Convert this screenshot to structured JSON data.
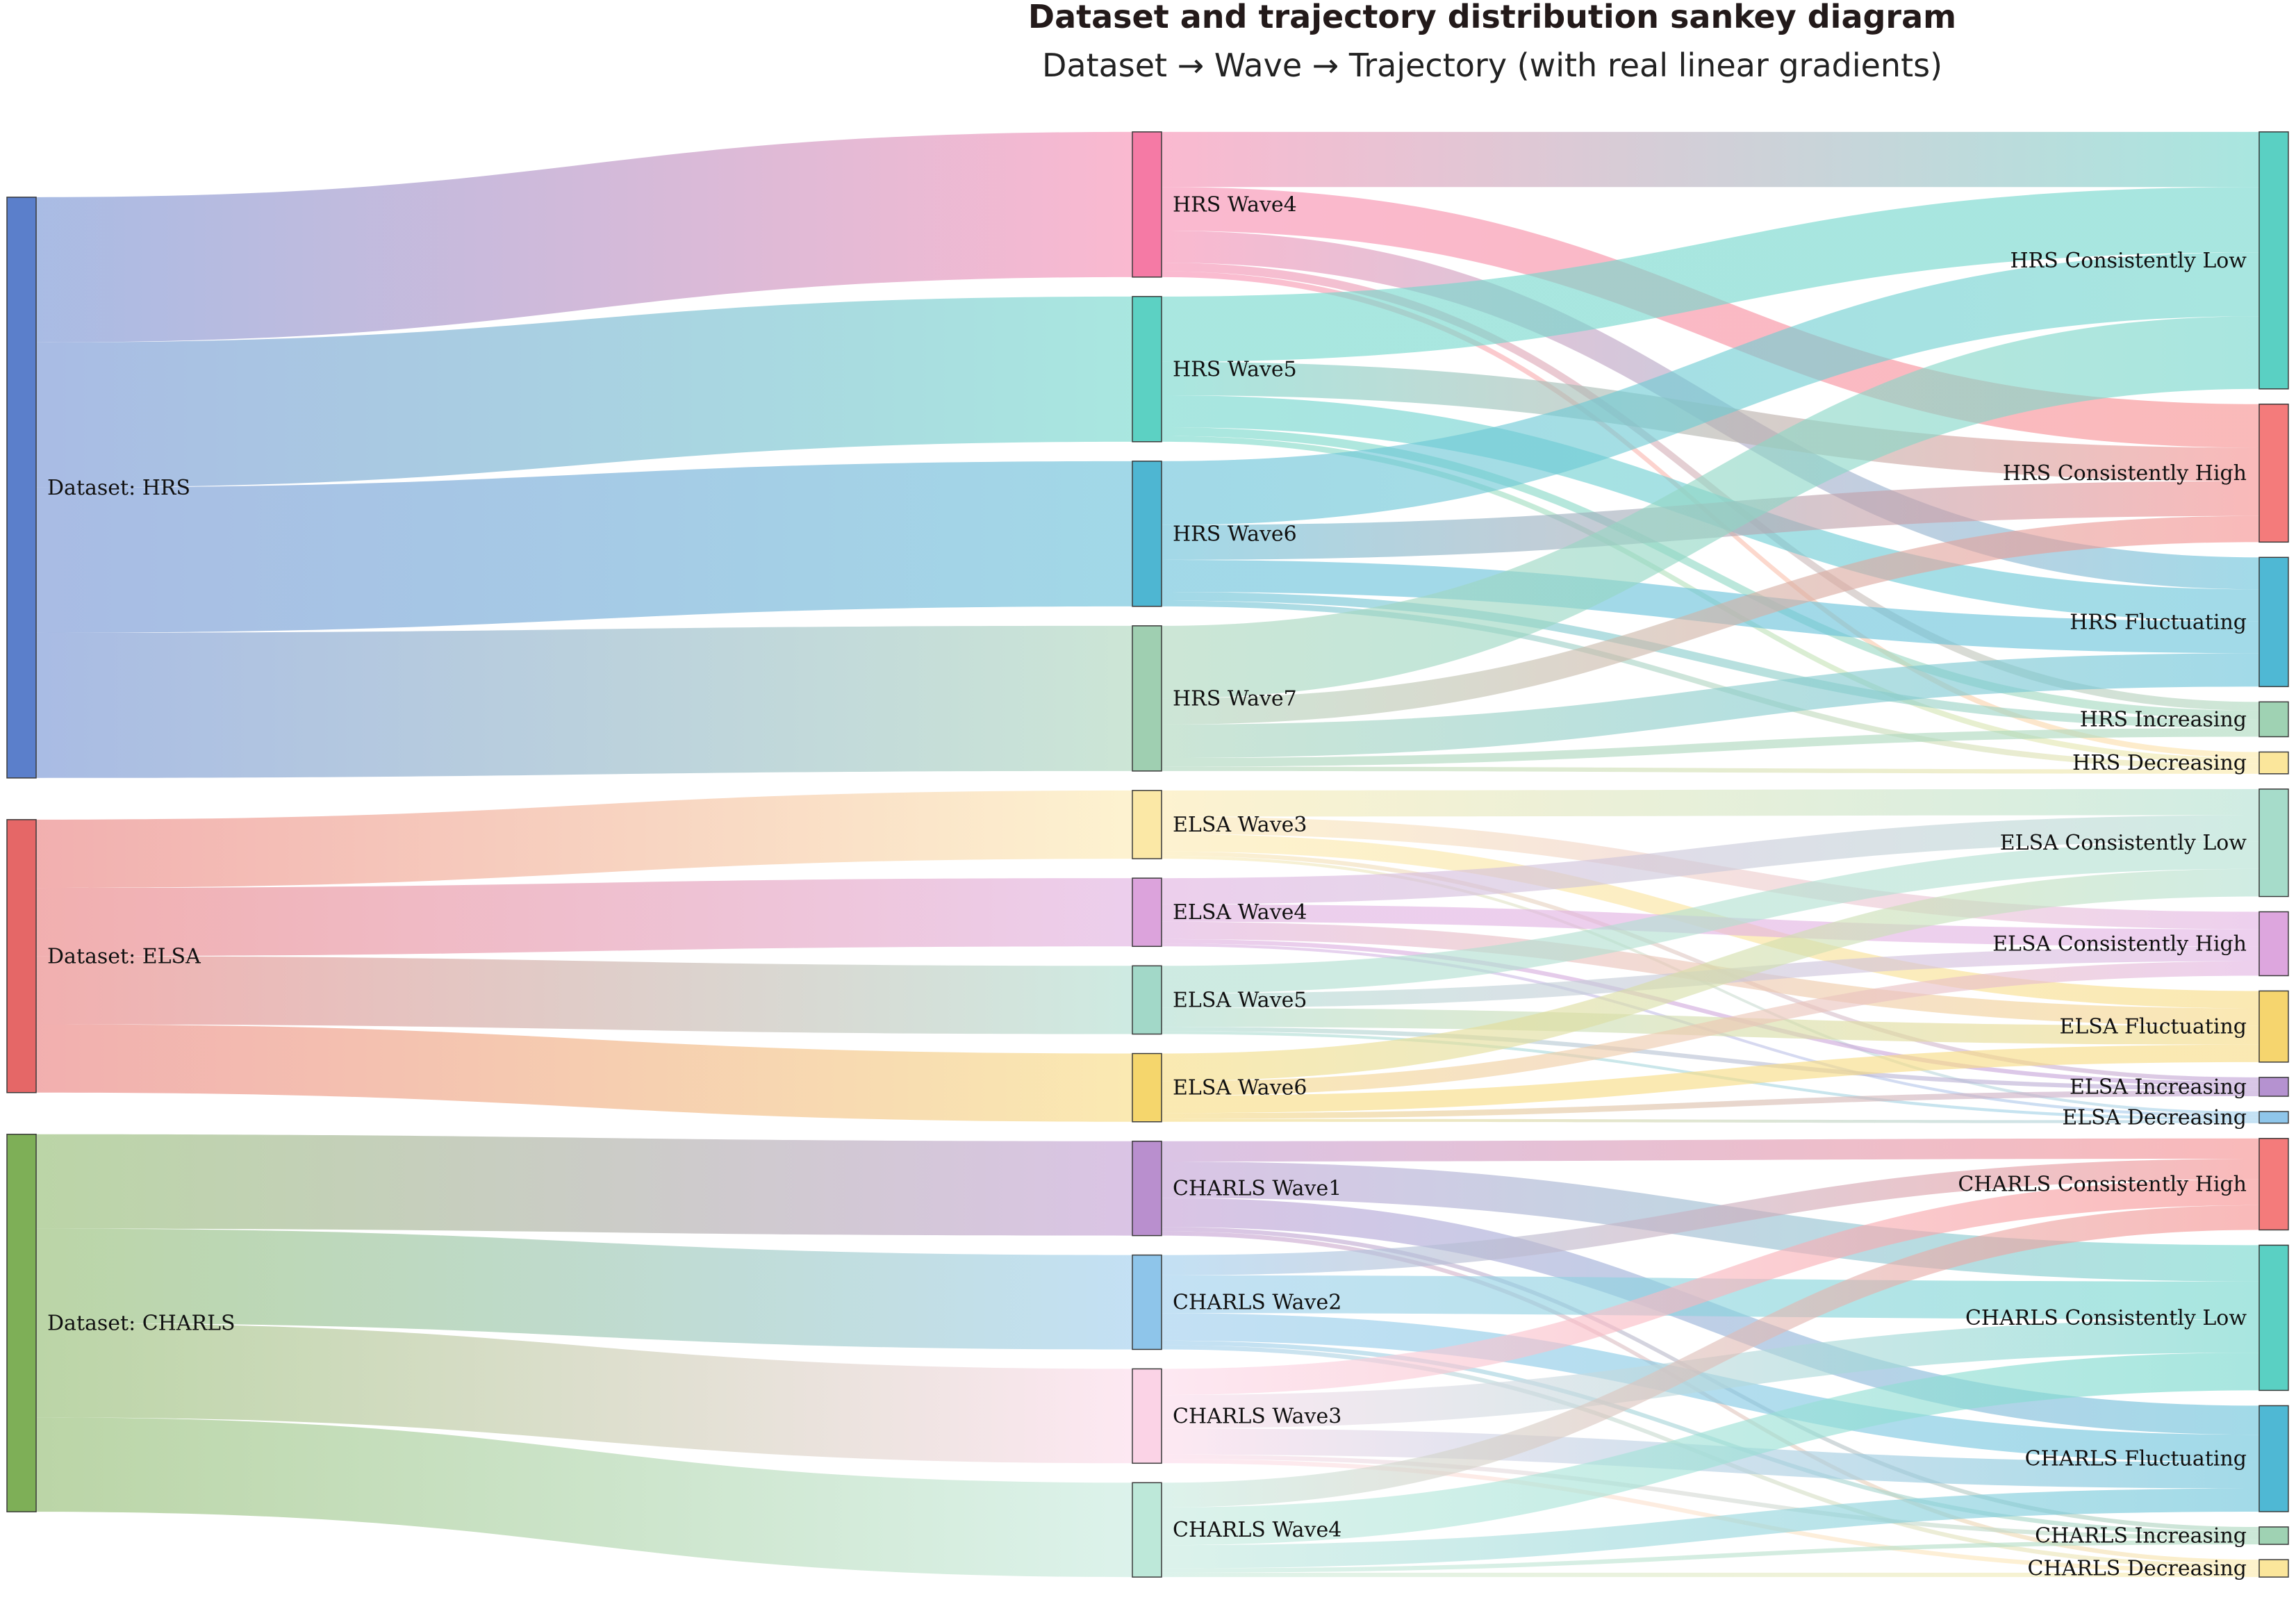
{
  "title": "Dataset and trajectory distribution sankey diagram",
  "subtitle": "Dataset → Wave → Trajectory (with real linear gradients)",
  "nodes": [
    {
      "id": "ds_hrs",
      "label": "Dataset: HRS",
      "color": "#5b7fcb"
    },
    {
      "id": "ds_elsa",
      "label": "Dataset: ELSA",
      "color": "#e56767"
    },
    {
      "id": "ds_charls",
      "label": "Dataset: CHARLS",
      "color": "#7eaf57"
    },
    {
      "id": "hrs_w4",
      "label": "HRS Wave4",
      "color": "#f57aa5"
    },
    {
      "id": "hrs_w5",
      "label": "HRS Wave5",
      "color": "#5cd1c3"
    },
    {
      "id": "hrs_w6",
      "label": "HRS Wave6",
      "color": "#4eb6d2"
    },
    {
      "id": "hrs_w7",
      "label": "HRS Wave7",
      "color": "#9fcfb1"
    },
    {
      "id": "elsa_w3",
      "label": "ELSA Wave3",
      "color": "#fbe8a6"
    },
    {
      "id": "elsa_w4",
      "label": "ELSA Wave4",
      "color": "#dca3dc"
    },
    {
      "id": "elsa_w5",
      "label": "ELSA Wave5",
      "color": "#a2d8c8"
    },
    {
      "id": "elsa_w6",
      "label": "ELSA Wave6",
      "color": "#f5d66c"
    },
    {
      "id": "charls_w1",
      "label": "CHARLS Wave1",
      "color": "#b98fce"
    },
    {
      "id": "charls_w2",
      "label": "CHARLS Wave2",
      "color": "#8ec5ea"
    },
    {
      "id": "charls_w3",
      "label": "CHARLS Wave3",
      "color": "#fbd3e6"
    },
    {
      "id": "charls_w4",
      "label": "CHARLS Wave4",
      "color": "#bde8d9"
    },
    {
      "id": "hrs_low",
      "label": "HRS Consistently Low",
      "color": "#5ad0c3"
    },
    {
      "id": "hrs_high",
      "label": "HRS Consistently High",
      "color": "#f47b7b"
    },
    {
      "id": "hrs_fluc",
      "label": "HRS Fluctuating",
      "color": "#4fb8d4"
    },
    {
      "id": "hrs_inc",
      "label": "HRS Increasing",
      "color": "#9fd2b3"
    },
    {
      "id": "hrs_dec",
      "label": "HRS Decreasing",
      "color": "#fbe69b"
    },
    {
      "id": "elsa_low",
      "label": "ELSA Consistently Low",
      "color": "#a6dcca"
    },
    {
      "id": "elsa_high",
      "label": "ELSA Consistently High",
      "color": "#dda6de"
    },
    {
      "id": "elsa_fluc",
      "label": "ELSA Fluctuating",
      "color": "#f6d56e"
    },
    {
      "id": "elsa_inc",
      "label": "ELSA Increasing",
      "color": "#b592d0"
    },
    {
      "id": "elsa_dec",
      "label": "ELSA Decreasing",
      "color": "#8fc6ea"
    },
    {
      "id": "charls_high",
      "label": "CHARLS Consistently High",
      "color": "#f47b7b"
    },
    {
      "id": "charls_low",
      "label": "CHARLS Consistently Low",
      "color": "#5ad0c3"
    },
    {
      "id": "charls_fluc",
      "label": "CHARLS Fluctuating",
      "color": "#4fb8d4"
    },
    {
      "id": "charls_inc",
      "label": "CHARLS Increasing",
      "color": "#9fd2b3"
    },
    {
      "id": "charls_dec",
      "label": "CHARLS Decreasing",
      "color": "#fbe69b"
    }
  ],
  "links": [
    {
      "source": "ds_hrs",
      "target": "hrs_w4",
      "value": 100
    },
    {
      "source": "ds_hrs",
      "target": "hrs_w5",
      "value": 100
    },
    {
      "source": "ds_hrs",
      "target": "hrs_w6",
      "value": 100
    },
    {
      "source": "ds_hrs",
      "target": "hrs_w7",
      "value": 100
    },
    {
      "source": "ds_elsa",
      "target": "elsa_w3",
      "value": 47
    },
    {
      "source": "ds_elsa",
      "target": "elsa_w4",
      "value": 47
    },
    {
      "source": "ds_elsa",
      "target": "elsa_w5",
      "value": 47
    },
    {
      "source": "ds_elsa",
      "target": "elsa_w6",
      "value": 47
    },
    {
      "source": "ds_charls",
      "target": "charls_w1",
      "value": 65
    },
    {
      "source": "ds_charls",
      "target": "charls_w2",
      "value": 65
    },
    {
      "source": "ds_charls",
      "target": "charls_w3",
      "value": 65
    },
    {
      "source": "ds_charls",
      "target": "charls_w4",
      "value": 65
    },
    {
      "source": "hrs_w4",
      "target": "hrs_low",
      "value": 38
    },
    {
      "source": "hrs_w4",
      "target": "hrs_high",
      "value": 30
    },
    {
      "source": "hrs_w4",
      "target": "hrs_fluc",
      "value": 22
    },
    {
      "source": "hrs_w4",
      "target": "hrs_inc",
      "value": 6
    },
    {
      "source": "hrs_w4",
      "target": "hrs_dec",
      "value": 4
    },
    {
      "source": "hrs_w5",
      "target": "hrs_low",
      "value": 45
    },
    {
      "source": "hrs_w5",
      "target": "hrs_high",
      "value": 23
    },
    {
      "source": "hrs_w5",
      "target": "hrs_fluc",
      "value": 22
    },
    {
      "source": "hrs_w5",
      "target": "hrs_inc",
      "value": 6
    },
    {
      "source": "hrs_w5",
      "target": "hrs_dec",
      "value": 4
    },
    {
      "source": "hrs_w6",
      "target": "hrs_low",
      "value": 44
    },
    {
      "source": "hrs_w6",
      "target": "hrs_high",
      "value": 24
    },
    {
      "source": "hrs_w6",
      "target": "hrs_fluc",
      "value": 22
    },
    {
      "source": "hrs_w6",
      "target": "hrs_inc",
      "value": 6
    },
    {
      "source": "hrs_w6",
      "target": "hrs_dec",
      "value": 4
    },
    {
      "source": "hrs_w7",
      "target": "hrs_low",
      "value": 50
    },
    {
      "source": "hrs_w7",
      "target": "hrs_high",
      "value": 18
    },
    {
      "source": "hrs_w7",
      "target": "hrs_fluc",
      "value": 23
    },
    {
      "source": "hrs_w7",
      "target": "hrs_inc",
      "value": 6
    },
    {
      "source": "hrs_w7",
      "target": "hrs_dec",
      "value": 3
    },
    {
      "source": "elsa_w3",
      "target": "elsa_low",
      "value": 18
    },
    {
      "source": "elsa_w3",
      "target": "elsa_high",
      "value": 12
    },
    {
      "source": "elsa_w3",
      "target": "elsa_fluc",
      "value": 12
    },
    {
      "source": "elsa_w3",
      "target": "elsa_inc",
      "value": 3
    },
    {
      "source": "elsa_w3",
      "target": "elsa_dec",
      "value": 2
    },
    {
      "source": "elsa_w4",
      "target": "elsa_low",
      "value": 18
    },
    {
      "source": "elsa_w4",
      "target": "elsa_high",
      "value": 12
    },
    {
      "source": "elsa_w4",
      "target": "elsa_fluc",
      "value": 12
    },
    {
      "source": "elsa_w4",
      "target": "elsa_inc",
      "value": 3
    },
    {
      "source": "elsa_w4",
      "target": "elsa_dec",
      "value": 2
    },
    {
      "source": "elsa_w5",
      "target": "elsa_low",
      "value": 19
    },
    {
      "source": "elsa_w5",
      "target": "elsa_high",
      "value": 10
    },
    {
      "source": "elsa_w5",
      "target": "elsa_fluc",
      "value": 13
    },
    {
      "source": "elsa_w5",
      "target": "elsa_inc",
      "value": 3
    },
    {
      "source": "elsa_w5",
      "target": "elsa_dec",
      "value": 2
    },
    {
      "source": "elsa_w6",
      "target": "elsa_low",
      "value": 19
    },
    {
      "source": "elsa_w6",
      "target": "elsa_high",
      "value": 10
    },
    {
      "source": "elsa_w6",
      "target": "elsa_fluc",
      "value": 12
    },
    {
      "source": "elsa_w6",
      "target": "elsa_inc",
      "value": 4
    },
    {
      "source": "elsa_w6",
      "target": "elsa_dec",
      "value": 2
    },
    {
      "source": "charls_w1",
      "target": "charls_high",
      "value": 14
    },
    {
      "source": "charls_w1",
      "target": "charls_low",
      "value": 25
    },
    {
      "source": "charls_w1",
      "target": "charls_fluc",
      "value": 20
    },
    {
      "source": "charls_w1",
      "target": "charls_inc",
      "value": 3
    },
    {
      "source": "charls_w1",
      "target": "charls_dec",
      "value": 3
    },
    {
      "source": "charls_w2",
      "target": "charls_high",
      "value": 14
    },
    {
      "source": "charls_w2",
      "target": "charls_low",
      "value": 26
    },
    {
      "source": "charls_w2",
      "target": "charls_fluc",
      "value": 19
    },
    {
      "source": "charls_w2",
      "target": "charls_inc",
      "value": 3
    },
    {
      "source": "charls_w2",
      "target": "charls_dec",
      "value": 3
    },
    {
      "source": "charls_w3",
      "target": "charls_high",
      "value": 18
    },
    {
      "source": "charls_w3",
      "target": "charls_low",
      "value": 23
    },
    {
      "source": "charls_w3",
      "target": "charls_fluc",
      "value": 18
    },
    {
      "source": "charls_w3",
      "target": "charls_inc",
      "value": 3
    },
    {
      "source": "charls_w3",
      "target": "charls_dec",
      "value": 3
    },
    {
      "source": "charls_w4",
      "target": "charls_high",
      "value": 17
    },
    {
      "source": "charls_w4",
      "target": "charls_low",
      "value": 26
    },
    {
      "source": "charls_w4",
      "target": "charls_fluc",
      "value": 16
    },
    {
      "source": "charls_w4",
      "target": "charls_inc",
      "value": 3
    },
    {
      "source": "charls_w4",
      "target": "charls_dec",
      "value": 3
    }
  ]
}
